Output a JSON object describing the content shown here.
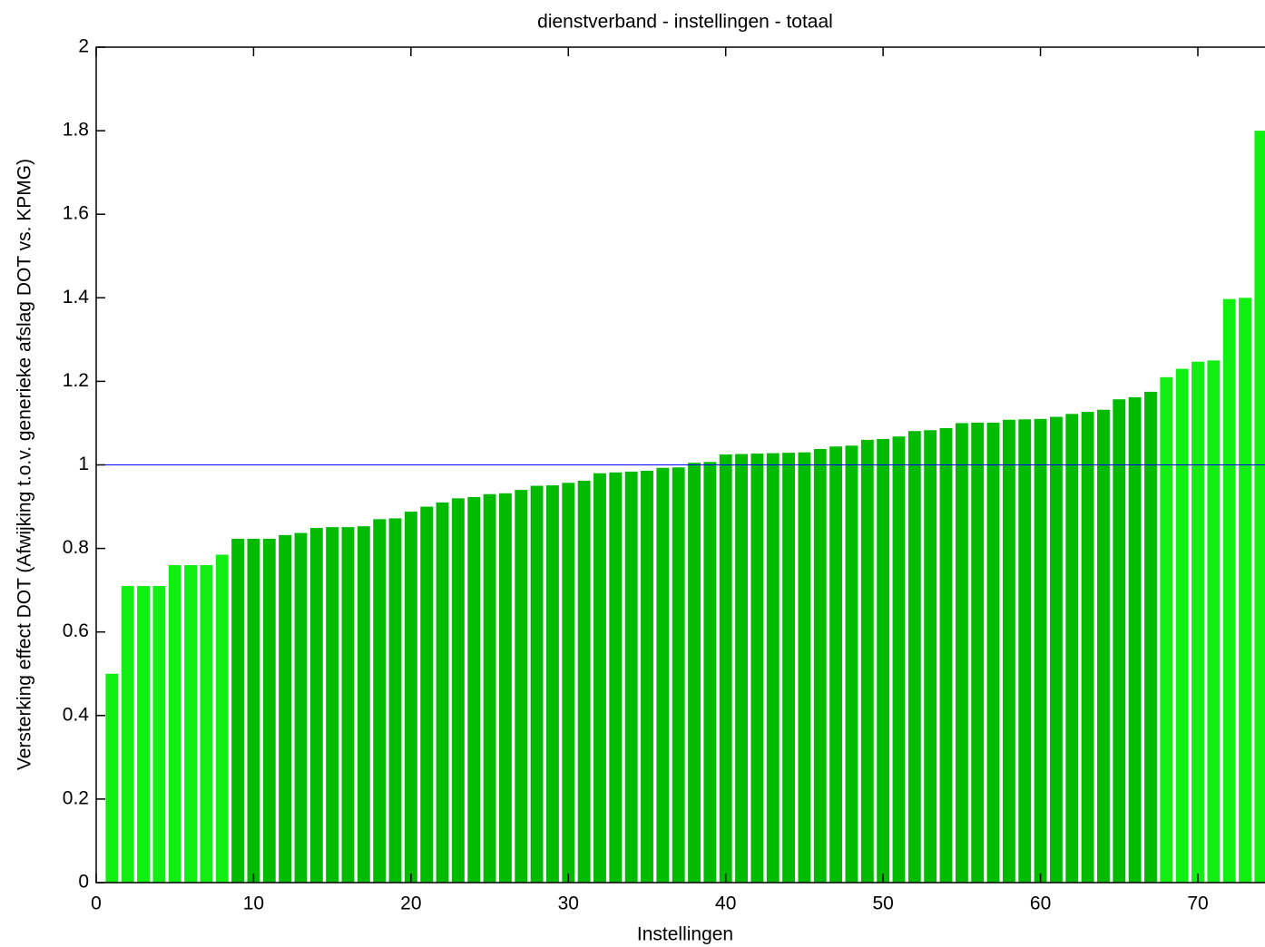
{
  "chart_data": {
    "type": "bar",
    "title": "dienstverband - instellingen - totaal",
    "xlabel": "Instellingen",
    "ylabel": "Versterking effect DOT (Afwijking t.o.v. generieke afslag DOT vs. KPMG)",
    "x": [
      1,
      2,
      3,
      4,
      5,
      6,
      7,
      8,
      9,
      10,
      11,
      12,
      13,
      14,
      15,
      16,
      17,
      18,
      19,
      20,
      21,
      22,
      23,
      24,
      25,
      26,
      27,
      28,
      29,
      30,
      31,
      32,
      33,
      34,
      35,
      36,
      37,
      38,
      39,
      40,
      41,
      42,
      43,
      44,
      45,
      46,
      47,
      48,
      49,
      50,
      51,
      52,
      53,
      54,
      55,
      56,
      57,
      58,
      59,
      60,
      61,
      62,
      63,
      64,
      65,
      66,
      67,
      68,
      69,
      70,
      71,
      72,
      73,
      74
    ],
    "values": [
      0.5,
      0.71,
      0.71,
      0.71,
      0.76,
      0.76,
      0.76,
      0.785,
      0.823,
      0.823,
      0.823,
      0.832,
      0.837,
      0.849,
      0.851,
      0.851,
      0.853,
      0.87,
      0.872,
      0.888,
      0.9,
      0.91,
      0.92,
      0.923,
      0.93,
      0.932,
      0.94,
      0.95,
      0.951,
      0.957,
      0.962,
      0.98,
      0.982,
      0.984,
      0.986,
      0.993,
      0.994,
      1.005,
      1.007,
      1.025,
      1.026,
      1.027,
      1.028,
      1.029,
      1.03,
      1.038,
      1.044,
      1.046,
      1.06,
      1.062,
      1.068,
      1.081,
      1.083,
      1.088,
      1.1,
      1.101,
      1.101,
      1.108,
      1.109,
      1.11,
      1.115,
      1.122,
      1.127,
      1.132,
      1.157,
      1.162,
      1.175,
      1.21,
      1.23,
      1.247,
      1.25,
      1.397,
      1.4,
      1.8
    ],
    "colors": [
      "#11ee11",
      "#11ee11",
      "#11ee11",
      "#11ee11",
      "#11ee11",
      "#11ee11",
      "#11ee11",
      "#11ee11",
      "#00bb00",
      "#00bb00",
      "#00bb00",
      "#00bb00",
      "#00bb00",
      "#00bb00",
      "#00bb00",
      "#00bb00",
      "#00bb00",
      "#00bb00",
      "#00bb00",
      "#00bb00",
      "#00bb00",
      "#00bb00",
      "#00bb00",
      "#00bb00",
      "#00bb00",
      "#00bb00",
      "#00bb00",
      "#00bb00",
      "#00bb00",
      "#00bb00",
      "#00bb00",
      "#00bb00",
      "#00bb00",
      "#00bb00",
      "#00bb00",
      "#00bb00",
      "#00bb00",
      "#00bb00",
      "#00bb00",
      "#00bb00",
      "#00bb00",
      "#00bb00",
      "#00bb00",
      "#00bb00",
      "#00bb00",
      "#00bb00",
      "#00bb00",
      "#00bb00",
      "#00bb00",
      "#00bb00",
      "#00bb00",
      "#00bb00",
      "#00bb00",
      "#00bb00",
      "#00bb00",
      "#00bb00",
      "#00bb00",
      "#00bb00",
      "#00bb00",
      "#00bb00",
      "#00bb00",
      "#00bb00",
      "#00bb00",
      "#00bb00",
      "#00bb00",
      "#00bb00",
      "#00bb00",
      "#11ee11",
      "#11ee11",
      "#11ee11",
      "#11ee11",
      "#11ee11",
      "#11ee11",
      "#11ee11"
    ],
    "bar_width": 0.8,
    "reference_line": {
      "value": 1,
      "color": "#0000ff"
    },
    "xlim": [
      0,
      75
    ],
    "xticks": [
      0,
      10,
      20,
      30,
      40,
      50,
      60,
      70
    ],
    "ylim": [
      0,
      2
    ],
    "yticks": [
      0,
      0.2,
      0.4,
      0.6,
      0.8,
      1,
      1.2,
      1.4,
      1.6,
      1.8,
      2
    ],
    "grid": false
  }
}
